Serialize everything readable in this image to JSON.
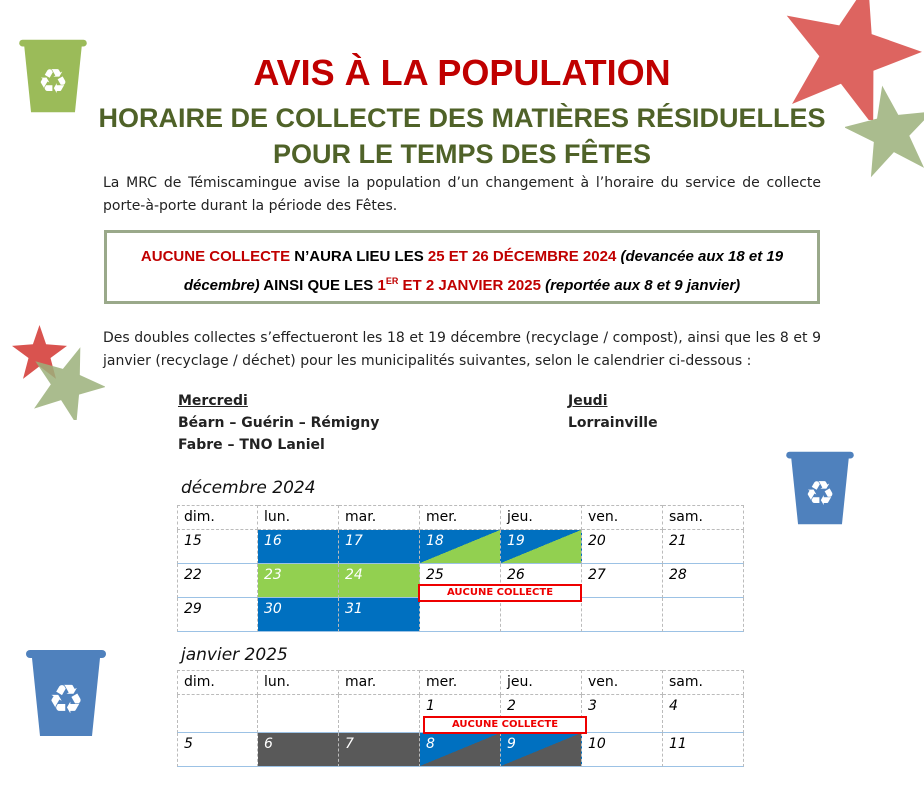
{
  "header": {
    "title": "AVIS À LA POPULATION",
    "subtitle_1": "HORAIRE DE COLLECTE DES MATIÈRES RÉSIDUELLES",
    "subtitle_2": "POUR LE TEMPS DES FÊTES"
  },
  "intro": "La MRC de Témiscamingue avise la population d’un changement à l’horaire du service de collecte porte-à-porte durant la période des Fêtes.",
  "notice": {
    "a": "AUCUNE COLLECTE",
    "b": " N’AURA LIEU LES ",
    "c": "25 ET 26 DÉCEMBRE 2024",
    "d": " (devancée aux 18 et 19 décembre)",
    "e": " AINSI QUE LES ",
    "f": "1",
    "f_sup": "ER",
    "g": " ET 2 JANVIER 2025",
    "h": " (reportée aux 8 et 9 janvier)"
  },
  "double": "Des doubles collectes s’effectueront les 18 et 19 décembre (recyclage / compost), ainsi que les 8 et 9 janvier (recyclage / déchet) pour les municipalités suivantes, selon le calendrier ci-dessous :",
  "groups": {
    "wed_label": "Mercredi",
    "wed_1": "Béarn – Guérin – Rémigny",
    "wed_2": "Fabre – TNO Laniel",
    "thu_label": "Jeudi",
    "thu_1": "Lorrainville"
  },
  "days": [
    "dim.",
    "lun.",
    "mar.",
    "mer.",
    "jeu.",
    "ven.",
    "sam."
  ],
  "december": {
    "title": "décembre 2024",
    "rows": [
      [
        "15",
        "16",
        "17",
        "18",
        "19",
        "20",
        "21"
      ],
      [
        "22",
        "23",
        "24",
        "25",
        "26",
        "27",
        "28"
      ],
      [
        "29",
        "30",
        "31",
        "",
        "",
        "",
        ""
      ]
    ],
    "no_collection": "AUCUNE COLLECTE"
  },
  "january": {
    "title": "janvier 2025",
    "rows": [
      [
        "",
        "",
        "",
        "1",
        "2",
        "3",
        "4"
      ],
      [
        "5",
        "6",
        "7",
        "8",
        "9",
        "10",
        "11"
      ]
    ],
    "no_collection": "AUCUNE COLLECTE"
  },
  "colors": {
    "blue": "#0070c0",
    "green": "#92d050",
    "gray": "#595959",
    "red": "#c00000"
  }
}
